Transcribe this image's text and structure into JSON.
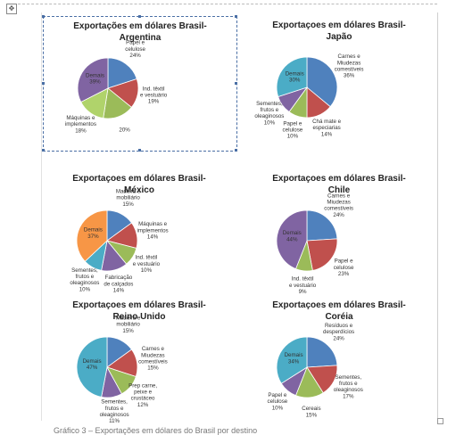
{
  "page": {
    "caption": "Gráfico 3 – Exportações em dólares do Brasil por destino"
  },
  "chart_data": [
    {
      "type": "pie",
      "title": "Exportações em dólares Brasil-Argentina",
      "selected": true,
      "slices": [
        {
          "name": "Papel e celulose",
          "value": 24,
          "color": "#4f81bd"
        },
        {
          "name": "Ind. têxtil e vestuário",
          "value": 19,
          "color": "#c0504d"
        },
        {
          "name": "",
          "value": 20,
          "color": "#9bbb59"
        },
        {
          "name": "Máquinas e implementos",
          "value": 18,
          "color": "#b0d36b"
        },
        {
          "name": "Demais",
          "value": 39,
          "color": "#8064a2"
        }
      ]
    },
    {
      "type": "pie",
      "title": "Exportaçoes em dólares Brasil-Japão",
      "slices": [
        {
          "name": "Carnes e Miudezas comestíveis",
          "value": 36,
          "color": "#4f81bd"
        },
        {
          "name": "Chá mate e especiarias",
          "value": 14,
          "color": "#c0504d"
        },
        {
          "name": "Papel e celulose",
          "value": 10,
          "color": "#9bbb59"
        },
        {
          "name": "Sementes, frutos e oleaginosos",
          "value": 10,
          "color": "#8064a2"
        },
        {
          "name": "Demais",
          "value": 30,
          "color": "#4bacc6"
        }
      ]
    },
    {
      "type": "pie",
      "title": "Exportaçoes em dólares Brasil-México",
      "slices": [
        {
          "name": "Madeira e mobiliário",
          "value": 15,
          "color": "#4f81bd"
        },
        {
          "name": "Máquinas e implementos",
          "value": 14,
          "color": "#c0504d"
        },
        {
          "name": "Ind. têxtil e vestuário",
          "value": 10,
          "color": "#9bbb59"
        },
        {
          "name": "Fabricação de calçados",
          "value": 14,
          "color": "#8064a2"
        },
        {
          "name": "Sementes, frutos e oleaginosos",
          "value": 10,
          "color": "#4bacc6"
        },
        {
          "name": "Demais",
          "value": 37,
          "color": "#f79646"
        }
      ]
    },
    {
      "type": "pie",
      "title": "Exportaçoes em dólares Brasil-Chile",
      "slices": [
        {
          "name": "Carnes e Miudezas comestíveis",
          "value": 24,
          "color": "#4f81bd"
        },
        {
          "name": "Papel e celulose",
          "value": 23,
          "color": "#c0504d"
        },
        {
          "name": "Ind. têxtil e vestuário",
          "value": 9,
          "color": "#9bbb59"
        },
        {
          "name": "Demais",
          "value": 44,
          "color": "#8064a2"
        }
      ]
    },
    {
      "type": "pie",
      "title": "Exportaçoes em dólares Brasil-Reino Unido",
      "slices": [
        {
          "name": "Madeira e mobiliário",
          "value": 15,
          "color": "#4f81bd"
        },
        {
          "name": "Carnes e Miudezas comestíveis",
          "value": 15,
          "color": "#c0504d"
        },
        {
          "name": "Prep carne, peixe e crustáceo",
          "value": 12,
          "color": "#9bbb59"
        },
        {
          "name": "Sementes, frutos e oleaginosos",
          "value": 11,
          "color": "#8064a2"
        },
        {
          "name": "Demais",
          "value": 47,
          "color": "#4bacc6"
        }
      ]
    },
    {
      "type": "pie",
      "title": "Exportaçoes em dólares Brasil-Coréia",
      "slices": [
        {
          "name": "Resíduos e desperdícios",
          "value": 24,
          "color": "#4f81bd"
        },
        {
          "name": "Sementes, frutos e oleaginosos",
          "value": 17,
          "color": "#c0504d"
        },
        {
          "name": "Cereais",
          "value": 15,
          "color": "#9bbb59"
        },
        {
          "name": "Papel e celulose",
          "value": 10,
          "color": "#8064a2"
        },
        {
          "name": "Demais",
          "value": 34,
          "color": "#4bacc6"
        }
      ]
    }
  ]
}
